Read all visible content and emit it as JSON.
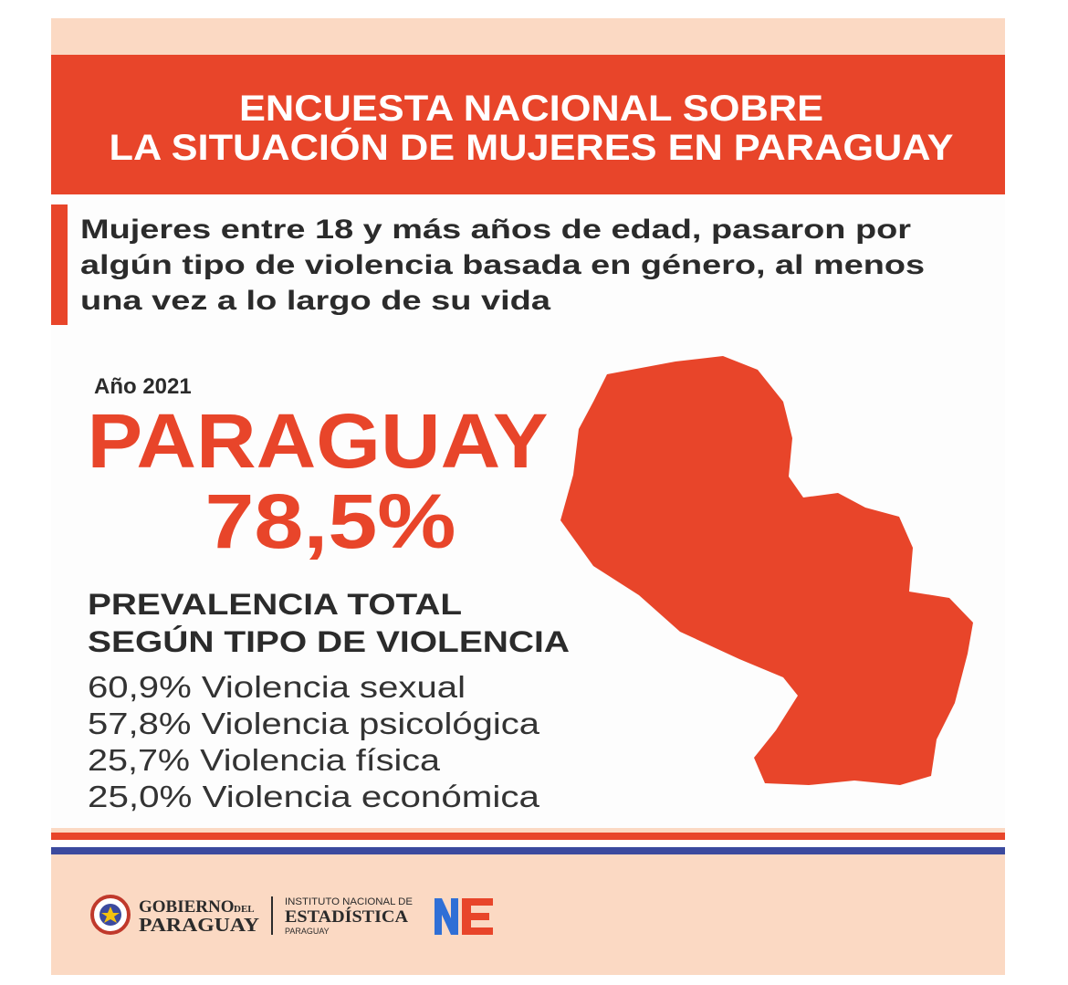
{
  "header": {
    "title_lines": [
      "ENCUESTA NACIONAL SOBRE",
      "LA SITUACIÓN DE MUJERES EN PARAGUAY"
    ]
  },
  "intro": {
    "lines": [
      "Mujeres entre 18 y más años de edad, pasaron por",
      "algún tipo de violencia basada en género, al menos",
      "una vez a lo largo de su vida"
    ]
  },
  "headline": {
    "year": "Año 2021",
    "country": "PARAGUAY",
    "total": "78,5%"
  },
  "breakdown": {
    "title_lines": [
      "PREVALENCIA TOTAL",
      "SEGÚN TIPO DE VIOLENCIA"
    ],
    "items": [
      "60,9% Violencia sexual",
      "57,8% Violencia psicológica",
      "25,7% Violencia física",
      "25,0% Violencia económica"
    ]
  },
  "footer": {
    "gov_logo": {
      "line1": "GOBIERNO",
      "small": "DEL",
      "line2": "PARAGUAY"
    },
    "ine_logo": {
      "line1": "INSTITUTO NACIONAL DE",
      "line2": "ESTADÍSTICA",
      "line3": "PARAGUAY"
    }
  }
}
